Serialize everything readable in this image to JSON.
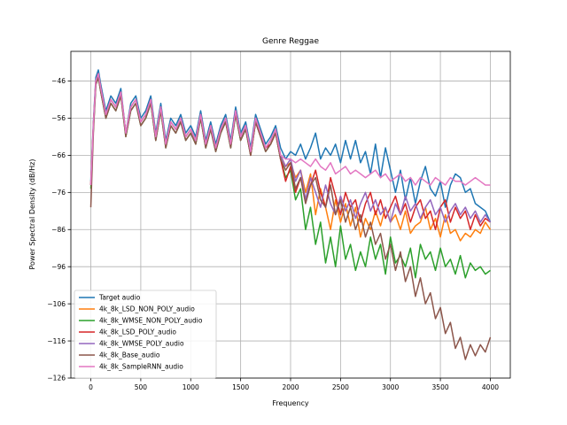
{
  "chart_data": {
    "type": "line",
    "title": "Genre Reggae",
    "xlabel": "Frequency",
    "ylabel": "Power Spectral Density (dB/Hz)",
    "xlim": [
      -200,
      4200
    ],
    "ylim": [
      -126,
      -38
    ],
    "xticks": [
      0,
      500,
      1000,
      1500,
      2000,
      2500,
      3000,
      3500,
      4000
    ],
    "xtick_labels": [
      "0",
      "500",
      "1000",
      "1500",
      "2000",
      "2500",
      "3000",
      "3500",
      "4000"
    ],
    "yticks": [
      -126,
      -116,
      -106,
      -96,
      -86,
      -76,
      -66,
      -56,
      -46
    ],
    "ytick_labels": [
      "−126",
      "−116",
      "−106",
      "−96",
      "−86",
      "−76",
      "−66",
      "−56",
      "−46"
    ],
    "grid": true,
    "legend_position": "lower-left",
    "series": [
      {
        "name": "Target audio",
        "color": "#1f77b4",
        "x": [
          0,
          25,
          50,
          75,
          100,
          150,
          200,
          250,
          300,
          350,
          400,
          450,
          500,
          550,
          600,
          650,
          700,
          750,
          800,
          850,
          900,
          950,
          1000,
          1050,
          1100,
          1150,
          1200,
          1250,
          1300,
          1350,
          1400,
          1450,
          1500,
          1550,
          1600,
          1650,
          1700,
          1750,
          1800,
          1850,
          1900,
          1950,
          2000,
          2050,
          2100,
          2150,
          2200,
          2250,
          2300,
          2350,
          2400,
          2450,
          2500,
          2550,
          2600,
          2650,
          2700,
          2750,
          2800,
          2850,
          2900,
          2950,
          3000,
          3050,
          3100,
          3150,
          3200,
          3250,
          3300,
          3350,
          3400,
          3450,
          3500,
          3550,
          3600,
          3650,
          3700,
          3750,
          3800,
          3850,
          3900,
          3950,
          4000
        ],
        "y": [
          -73,
          -57,
          -45,
          -43,
          -47,
          -54,
          -50,
          -52,
          -48,
          -60,
          -52,
          -50,
          -56,
          -54,
          -50,
          -60,
          -52,
          -62,
          -56,
          -58,
          -55,
          -60,
          -58,
          -61,
          -54,
          -62,
          -57,
          -63,
          -58,
          -55,
          -62,
          -53,
          -60,
          -57,
          -64,
          -55,
          -59,
          -63,
          -61,
          -58,
          -64,
          -67,
          -65,
          -66,
          -63,
          -67,
          -64,
          -60,
          -67,
          -64,
          -66,
          -63,
          -68,
          -62,
          -67,
          -62,
          -68,
          -65,
          -71,
          -63,
          -72,
          -64,
          -70,
          -76,
          -70,
          -78,
          -72,
          -79,
          -73,
          -69,
          -75,
          -77,
          -73,
          -80,
          -74,
          -71,
          -72,
          -76,
          -75,
          -79,
          -80,
          -81,
          -84
        ]
      },
      {
        "name": "4k_8k_LSD_NON_POLY_audio",
        "color": "#ff7f0e",
        "x": [
          0,
          25,
          50,
          75,
          100,
          150,
          200,
          250,
          300,
          350,
          400,
          450,
          500,
          550,
          600,
          650,
          700,
          750,
          800,
          850,
          900,
          950,
          1000,
          1050,
          1100,
          1150,
          1200,
          1250,
          1300,
          1350,
          1400,
          1450,
          1500,
          1550,
          1600,
          1650,
          1700,
          1750,
          1800,
          1850,
          1900,
          1950,
          2000,
          2050,
          2100,
          2150,
          2200,
          2250,
          2300,
          2350,
          2400,
          2450,
          2500,
          2550,
          2600,
          2650,
          2700,
          2750,
          2800,
          2850,
          2900,
          2950,
          3000,
          3050,
          3100,
          3150,
          3200,
          3250,
          3300,
          3350,
          3400,
          3450,
          3500,
          3550,
          3600,
          3650,
          3700,
          3750,
          3800,
          3850,
          3900,
          3950,
          4000
        ],
        "y": [
          -74,
          -58,
          -46,
          -44,
          -48,
          -55,
          -51,
          -53,
          -49,
          -60,
          -53,
          -51,
          -57,
          -55,
          -51,
          -61,
          -53,
          -63,
          -57,
          -59,
          -56,
          -61,
          -59,
          -62,
          -55,
          -63,
          -58,
          -64,
          -59,
          -56,
          -63,
          -54,
          -61,
          -58,
          -65,
          -56,
          -60,
          -64,
          -62,
          -59,
          -66,
          -69,
          -68,
          -72,
          -70,
          -76,
          -71,
          -82,
          -75,
          -80,
          -86,
          -78,
          -84,
          -79,
          -85,
          -80,
          -88,
          -83,
          -86,
          -81,
          -85,
          -80,
          -84,
          -82,
          -86,
          -81,
          -87,
          -85,
          -84,
          -80,
          -86,
          -83,
          -88,
          -82,
          -87,
          -86,
          -89,
          -87,
          -88,
          -86,
          -87,
          -84,
          -86
        ]
      },
      {
        "name": "4k_8k_WMSE_NON_POLY_audio",
        "color": "#2ca02c",
        "x": [
          0,
          25,
          50,
          75,
          100,
          150,
          200,
          250,
          300,
          350,
          400,
          450,
          500,
          550,
          600,
          650,
          700,
          750,
          800,
          850,
          900,
          950,
          1000,
          1050,
          1100,
          1150,
          1200,
          1250,
          1300,
          1350,
          1400,
          1450,
          1500,
          1550,
          1600,
          1650,
          1700,
          1750,
          1800,
          1850,
          1900,
          1950,
          2000,
          2050,
          2100,
          2150,
          2200,
          2250,
          2300,
          2350,
          2400,
          2450,
          2500,
          2550,
          2600,
          2650,
          2700,
          2750,
          2800,
          2850,
          2900,
          2950,
          3000,
          3050,
          3100,
          3150,
          3200,
          3250,
          3300,
          3350,
          3400,
          3450,
          3500,
          3550,
          3600,
          3650,
          3700,
          3750,
          3800,
          3850,
          3900,
          3950,
          4000
        ],
        "y": [
          -75,
          -59,
          -47,
          -45,
          -49,
          -56,
          -52,
          -54,
          -50,
          -61,
          -54,
          -52,
          -58,
          -56,
          -52,
          -62,
          -54,
          -64,
          -58,
          -60,
          -57,
          -62,
          -60,
          -63,
          -56,
          -64,
          -59,
          -65,
          -60,
          -57,
          -64,
          -55,
          -62,
          -59,
          -66,
          -57,
          -61,
          -65,
          -63,
          -60,
          -67,
          -72,
          -70,
          -78,
          -75,
          -86,
          -80,
          -90,
          -84,
          -95,
          -88,
          -96,
          -85,
          -94,
          -90,
          -97,
          -92,
          -96,
          -88,
          -94,
          -90,
          -98,
          -88,
          -95,
          -93,
          -96,
          -91,
          -99,
          -90,
          -94,
          -92,
          -97,
          -91,
          -96,
          -94,
          -98,
          -93,
          -99,
          -95,
          -97,
          -96,
          -98,
          -97
        ]
      },
      {
        "name": "4k_8k_LSD_POLY_audio",
        "color": "#d62728",
        "x": [
          0,
          25,
          50,
          75,
          100,
          150,
          200,
          250,
          300,
          350,
          400,
          450,
          500,
          550,
          600,
          650,
          700,
          750,
          800,
          850,
          900,
          950,
          1000,
          1050,
          1100,
          1150,
          1200,
          1250,
          1300,
          1350,
          1400,
          1450,
          1500,
          1550,
          1600,
          1650,
          1700,
          1750,
          1800,
          1850,
          1900,
          1950,
          2000,
          2050,
          2100,
          2150,
          2200,
          2250,
          2300,
          2350,
          2400,
          2450,
          2500,
          2550,
          2600,
          2650,
          2700,
          2750,
          2800,
          2850,
          2900,
          2950,
          3000,
          3050,
          3100,
          3150,
          3200,
          3250,
          3300,
          3350,
          3400,
          3450,
          3500,
          3550,
          3600,
          3650,
          3700,
          3750,
          3800,
          3850,
          3900,
          3950,
          4000
        ],
        "y": [
          -74,
          -58,
          -46,
          -44,
          -48,
          -55,
          -51,
          -53,
          -49,
          -60,
          -53,
          -51,
          -57,
          -55,
          -51,
          -61,
          -53,
          -63,
          -57,
          -59,
          -56,
          -61,
          -59,
          -62,
          -55,
          -63,
          -58,
          -64,
          -59,
          -56,
          -63,
          -54,
          -61,
          -58,
          -66,
          -57,
          -61,
          -64,
          -63,
          -60,
          -67,
          -73,
          -69,
          -76,
          -72,
          -78,
          -74,
          -70,
          -76,
          -80,
          -72,
          -77,
          -82,
          -76,
          -80,
          -78,
          -84,
          -79,
          -76,
          -82,
          -78,
          -83,
          -80,
          -77,
          -82,
          -79,
          -84,
          -80,
          -78,
          -83,
          -81,
          -86,
          -80,
          -78,
          -84,
          -80,
          -83,
          -81,
          -86,
          -82,
          -85,
          -83,
          -84
        ]
      },
      {
        "name": "4k_8k_WMSE_POLY_audio",
        "color": "#9467bd",
        "x": [
          0,
          25,
          50,
          75,
          100,
          150,
          200,
          250,
          300,
          350,
          400,
          450,
          500,
          550,
          600,
          650,
          700,
          750,
          800,
          850,
          900,
          950,
          1000,
          1050,
          1100,
          1150,
          1200,
          1250,
          1300,
          1350,
          1400,
          1450,
          1500,
          1550,
          1600,
          1650,
          1700,
          1750,
          1800,
          1850,
          1900,
          1950,
          2000,
          2050,
          2100,
          2150,
          2200,
          2250,
          2300,
          2350,
          2400,
          2450,
          2500,
          2550,
          2600,
          2650,
          2700,
          2750,
          2800,
          2850,
          2900,
          2950,
          3000,
          3050,
          3100,
          3150,
          3200,
          3250,
          3300,
          3350,
          3400,
          3450,
          3500,
          3550,
          3600,
          3650,
          3700,
          3750,
          3800,
          3850,
          3900,
          3950,
          4000
        ],
        "y": [
          -74,
          -58,
          -46,
          -44,
          -48,
          -55,
          -51,
          -53,
          -49,
          -60,
          -53,
          -51,
          -57,
          -55,
          -51,
          -61,
          -53,
          -63,
          -57,
          -59,
          -56,
          -61,
          -59,
          -62,
          -55,
          -63,
          -58,
          -64,
          -59,
          -56,
          -63,
          -54,
          -61,
          -58,
          -65,
          -56,
          -60,
          -64,
          -62,
          -59,
          -66,
          -69,
          -67,
          -73,
          -70,
          -78,
          -72,
          -76,
          -80,
          -74,
          -79,
          -82,
          -77,
          -81,
          -78,
          -83,
          -79,
          -76,
          -81,
          -78,
          -82,
          -80,
          -84,
          -79,
          -82,
          -77,
          -81,
          -79,
          -83,
          -80,
          -78,
          -82,
          -80,
          -84,
          -81,
          -79,
          -82,
          -80,
          -83,
          -81,
          -84,
          -82,
          -84
        ]
      },
      {
        "name": "4k_8k_Base_audio",
        "color": "#8c564b",
        "x": [
          0,
          25,
          50,
          75,
          100,
          150,
          200,
          250,
          300,
          350,
          400,
          450,
          500,
          550,
          600,
          650,
          700,
          750,
          800,
          850,
          900,
          950,
          1000,
          1050,
          1100,
          1150,
          1200,
          1250,
          1300,
          1350,
          1400,
          1450,
          1500,
          1550,
          1600,
          1650,
          1700,
          1750,
          1800,
          1850,
          1900,
          1950,
          2000,
          2050,
          2100,
          2150,
          2200,
          2250,
          2300,
          2350,
          2400,
          2450,
          2500,
          2550,
          2600,
          2650,
          2700,
          2750,
          2800,
          2850,
          2900,
          2950,
          3000,
          3050,
          3100,
          3150,
          3200,
          3250,
          3300,
          3350,
          3400,
          3450,
          3500,
          3550,
          3600,
          3650,
          3700,
          3750,
          3800,
          3850,
          3900,
          3950,
          4000
        ],
        "y": [
          -80,
          -60,
          -47,
          -45,
          -49,
          -56,
          -52,
          -54,
          -50,
          -61,
          -54,
          -52,
          -58,
          -56,
          -52,
          -62,
          -54,
          -64,
          -58,
          -60,
          -57,
          -62,
          -60,
          -63,
          -56,
          -64,
          -59,
          -65,
          -60,
          -57,
          -64,
          -55,
          -62,
          -59,
          -66,
          -57,
          -61,
          -65,
          -63,
          -60,
          -67,
          -70,
          -68,
          -75,
          -72,
          -79,
          -74,
          -72,
          -78,
          -80,
          -74,
          -82,
          -78,
          -84,
          -80,
          -86,
          -82,
          -88,
          -84,
          -90,
          -87,
          -94,
          -90,
          -97,
          -92,
          -100,
          -96,
          -104,
          -99,
          -106,
          -103,
          -110,
          -107,
          -114,
          -111,
          -118,
          -115,
          -121,
          -117,
          -120,
          -117,
          -119,
          -115
        ]
      },
      {
        "name": "4k_8k_SampleRNN_audio",
        "color": "#e377c2",
        "x": [
          0,
          25,
          50,
          75,
          100,
          150,
          200,
          250,
          300,
          350,
          400,
          450,
          500,
          550,
          600,
          650,
          700,
          750,
          800,
          850,
          900,
          950,
          1000,
          1050,
          1100,
          1150,
          1200,
          1250,
          1300,
          1350,
          1400,
          1450,
          1500,
          1550,
          1600,
          1650,
          1700,
          1750,
          1800,
          1850,
          1900,
          1950,
          2000,
          2050,
          2100,
          2150,
          2200,
          2250,
          2300,
          2350,
          2400,
          2450,
          2500,
          2550,
          2600,
          2650,
          2700,
          2750,
          2800,
          2850,
          2900,
          2950,
          3000,
          3050,
          3100,
          3150,
          3200,
          3250,
          3300,
          3350,
          3400,
          3450,
          3500,
          3550,
          3600,
          3650,
          3700,
          3750,
          3800,
          3850,
          3900,
          3950,
          4000
        ],
        "y": [
          -74,
          -58,
          -46,
          -44,
          -48,
          -55,
          -51,
          -53,
          -49,
          -60,
          -53,
          -51,
          -57,
          -55,
          -51,
          -61,
          -53,
          -63,
          -57,
          -59,
          -56,
          -61,
          -59,
          -62,
          -55,
          -63,
          -58,
          -64,
          -59,
          -56,
          -63,
          -54,
          -61,
          -58,
          -65,
          -56,
          -60,
          -64,
          -62,
          -59,
          -66,
          -67,
          -67,
          -68,
          -67,
          -68,
          -69,
          -67,
          -69,
          -70,
          -68,
          -71,
          -70,
          -69,
          -71,
          -70,
          -71,
          -72,
          -71,
          -70,
          -72,
          -71,
          -73,
          -72,
          -71,
          -73,
          -72,
          -74,
          -72,
          -73,
          -74,
          -72,
          -73,
          -74,
          -72,
          -73,
          -73,
          -74,
          -73,
          -72,
          -73,
          -74,
          -74
        ]
      }
    ]
  }
}
